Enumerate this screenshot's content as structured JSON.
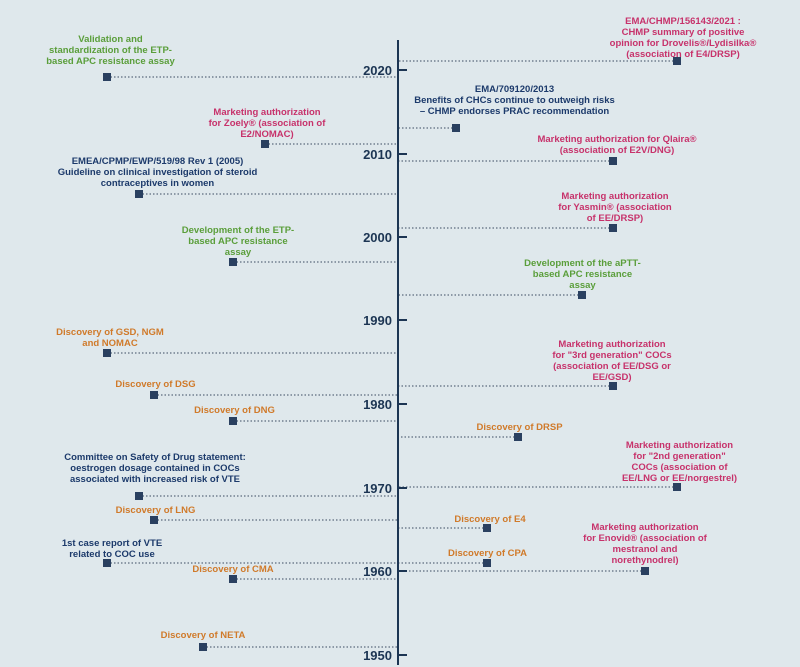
{
  "colors": {
    "green": "#5a9e3a",
    "pink": "#c7326b",
    "navy": "#1c3a6b",
    "orange": "#d07a2a",
    "axis": "#1c3553",
    "marker": "#2a4060",
    "leader": "#3a4a60"
  },
  "axis": {
    "year_labels": [
      "2020",
      "2010",
      "2000",
      "1990",
      "1980",
      "1970",
      "1960",
      "1950"
    ]
  },
  "events": [
    {
      "id": "validation-etp",
      "text": "Validation and\nstandardization of the ETP-\nbased APC resistance assay",
      "color": "green"
    },
    {
      "id": "ema-chmp-156143",
      "text": "EMA/CHMP/156143/2021 :\nCHMP summary of positive\nopinion for Drovelis®/Lydisilka®\n(association of E4/DRSP)",
      "color": "pink"
    },
    {
      "id": "ema-709120",
      "text": "EMA/709120/2013\nBenefits of CHCs continue to outweigh risks\n– CHMP endorses PRAC recommendation",
      "color": "navy"
    },
    {
      "id": "zoely",
      "text": "Marketing authorization\nfor Zoely® (association of\nE2/NOMAC)",
      "color": "pink"
    },
    {
      "id": "qlaira",
      "text": "Marketing authorization for Qlaira®\n(association of E2V/DNG)",
      "color": "pink"
    },
    {
      "id": "emea-guideline",
      "text": "EMEA/CPMP/EWP/519/98  Rev 1 (2005)\nGuideline on clinical investigation of steroid\ncontraceptives in women",
      "color": "navy"
    },
    {
      "id": "yasmin",
      "text": "Marketing authorization\nfor Yasmin® (association\nof EE/DRSP)",
      "color": "pink"
    },
    {
      "id": "dev-etp",
      "text": "Development of the ETP-\nbased APC resistance\nassay",
      "color": "green"
    },
    {
      "id": "dev-aptt",
      "text": "Development of the aPTT-\nbased APC resistance\nassay",
      "color": "green"
    },
    {
      "id": "gsd-ngm-nomac",
      "text": "Discovery of GSD, NGM\nand NOMAC",
      "color": "orange"
    },
    {
      "id": "third-gen",
      "text": "Marketing authorization\nfor \"3rd generation\" COCs\n(association of EE/DSG or\nEE/GSD)",
      "color": "pink"
    },
    {
      "id": "dsg",
      "text": "Discovery of DSG",
      "color": "orange"
    },
    {
      "id": "dng",
      "text": "Discovery of DNG",
      "color": "orange"
    },
    {
      "id": "drsp",
      "text": "Discovery of DRSP",
      "color": "orange"
    },
    {
      "id": "csd-statement",
      "text": "Committee on Safety of Drug statement:\noestrogen dosage contained in COCs\nassociated with increased risk of VTE",
      "color": "navy"
    },
    {
      "id": "second-gen",
      "text": "Marketing authorization\nfor \"2nd  generation\"\nCOCs (association of\nEE/LNG  or  EE/norgestrel)",
      "color": "pink"
    },
    {
      "id": "lng",
      "text": "Discovery of LNG",
      "color": "orange"
    },
    {
      "id": "e4",
      "text": "Discovery of E4",
      "color": "orange"
    },
    {
      "id": "enovid",
      "text": "Marketing authorization\nfor Enovid® (association of\nmestranol and\nnorethynodrel)",
      "color": "pink"
    },
    {
      "id": "first-vte",
      "text": "1st case report of VTE\nrelated to COC use",
      "color": "navy"
    },
    {
      "id": "cpa",
      "text": "Discovery of CPA",
      "color": "orange"
    },
    {
      "id": "cma",
      "text": "Discovery of CMA",
      "color": "orange"
    },
    {
      "id": "neta",
      "text": "Discovery of NETA",
      "color": "orange"
    }
  ]
}
